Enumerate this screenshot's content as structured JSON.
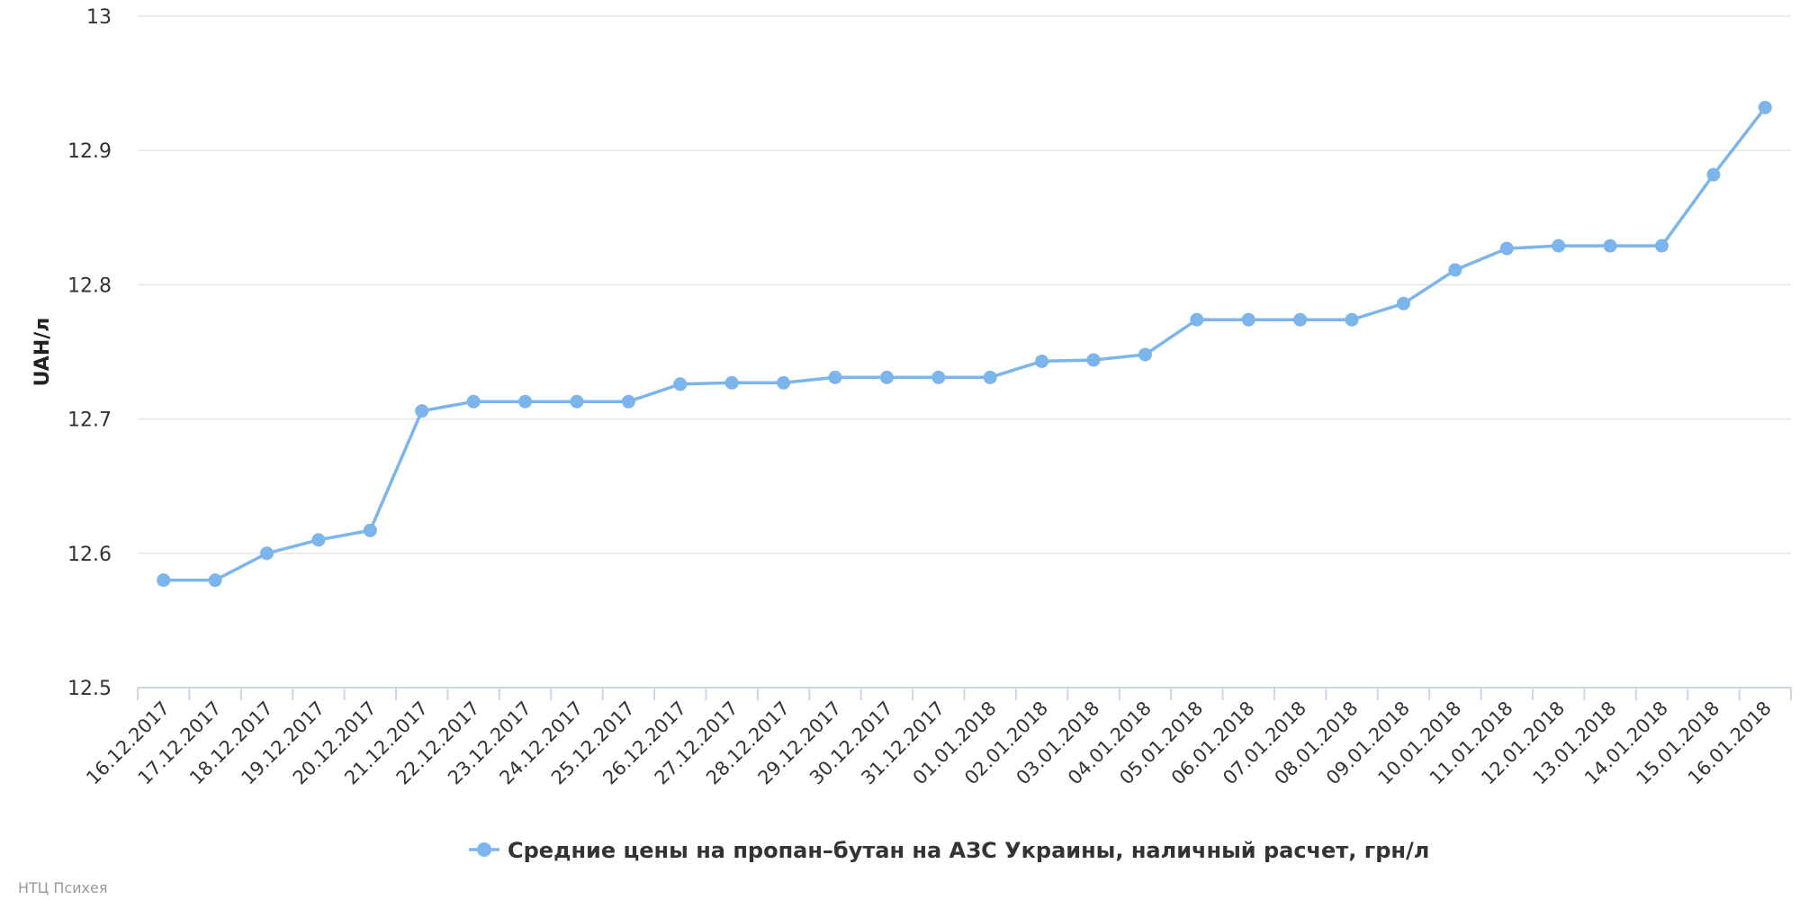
{
  "chart_data": {
    "type": "line",
    "ylabel": "UAH/л",
    "xlabel": "",
    "ylim": [
      12.5,
      13
    ],
    "yticks": [
      "12.5",
      "12.6",
      "12.7",
      "12.8",
      "12.9",
      "13"
    ],
    "grid": true,
    "legend_position": "bottom-center",
    "categories": [
      "16.12.2017",
      "17.12.2017",
      "18.12.2017",
      "19.12.2017",
      "20.12.2017",
      "21.12.2017",
      "22.12.2017",
      "23.12.2017",
      "24.12.2017",
      "25.12.2017",
      "26.12.2017",
      "27.12.2017",
      "28.12.2017",
      "29.12.2017",
      "30.12.2017",
      "31.12.2017",
      "01.01.2018",
      "02.01.2018",
      "03.01.2018",
      "04.01.2018",
      "05.01.2018",
      "06.01.2018",
      "07.01.2018",
      "08.01.2018",
      "09.01.2018",
      "10.01.2018",
      "11.01.2018",
      "12.01.2018",
      "13.01.2018",
      "14.01.2018",
      "15.01.2018",
      "16.01.2018"
    ],
    "series": [
      {
        "name": "Средние цены на пропан–бутан на АЗС Украины, наличный расчет, грн/л",
        "color": "#7cb5ec",
        "values": [
          12.58,
          12.58,
          12.6,
          12.61,
          12.617,
          12.706,
          12.713,
          12.713,
          12.713,
          12.713,
          12.726,
          12.727,
          12.727,
          12.731,
          12.731,
          12.731,
          12.731,
          12.743,
          12.744,
          12.748,
          12.774,
          12.774,
          12.774,
          12.774,
          12.786,
          12.811,
          12.827,
          12.829,
          12.829,
          12.829,
          12.882,
          12.932
        ]
      }
    ]
  },
  "credit": "НТЦ Психея"
}
